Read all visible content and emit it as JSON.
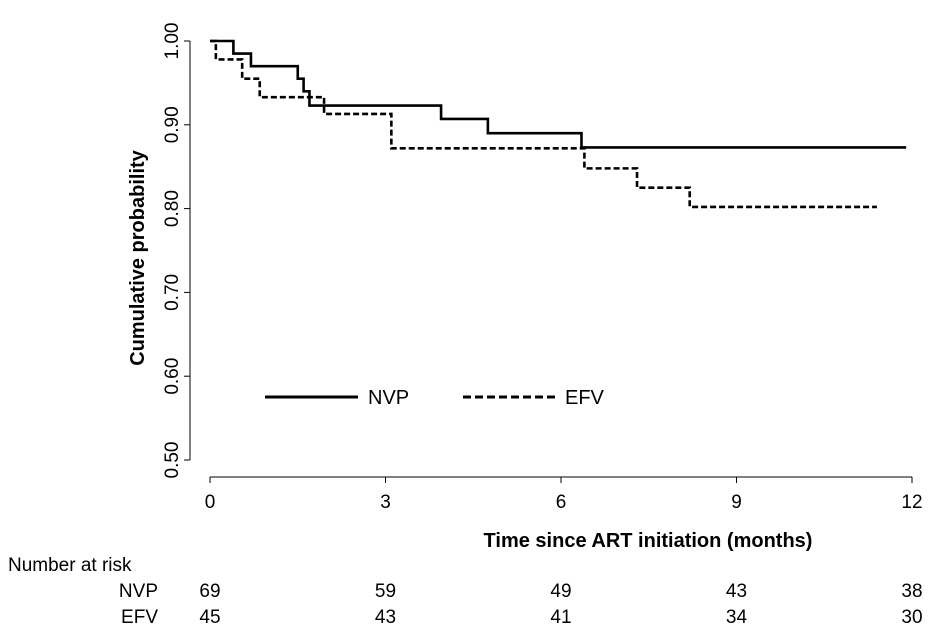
{
  "chart_data": {
    "type": "line",
    "subtype": "kaplan-meier",
    "xlabel": "Time since ART initiation (months)",
    "ylabel": "Cumulative probability",
    "xlim": [
      0,
      12
    ],
    "ylim": [
      0.5,
      1.0
    ],
    "x_ticks": [
      0,
      3,
      6,
      9,
      12
    ],
    "x_tick_labels": [
      "0",
      "3",
      "6",
      "9",
      "12"
    ],
    "y_ticks": [
      0.5,
      0.6,
      0.7,
      0.8,
      0.9,
      1.0
    ],
    "y_tick_labels": [
      "0.50",
      "0.60",
      "0.70",
      "0.80",
      "0.90",
      "1.00"
    ],
    "grid": false,
    "legend_position": "lower-left inside plot",
    "series": [
      {
        "name": "NVP",
        "line_style": "solid",
        "color": "#000000",
        "steps": [
          [
            0,
            1.0
          ],
          [
            0.4,
            0.985
          ],
          [
            0.7,
            0.97
          ],
          [
            1.5,
            0.955
          ],
          [
            1.6,
            0.94
          ],
          [
            1.7,
            0.923
          ],
          [
            3.95,
            0.907
          ],
          [
            4.75,
            0.89
          ],
          [
            6.35,
            0.873
          ],
          [
            11.9,
            0.873
          ]
        ]
      },
      {
        "name": "EFV",
        "line_style": "dashed",
        "color": "#000000",
        "steps": [
          [
            0,
            1.0
          ],
          [
            0.1,
            0.978
          ],
          [
            0.55,
            0.955
          ],
          [
            0.85,
            0.933
          ],
          [
            1.95,
            0.913
          ],
          [
            3.1,
            0.872
          ],
          [
            6.4,
            0.848
          ],
          [
            7.3,
            0.825
          ],
          [
            8.2,
            0.802
          ],
          [
            11.4,
            0.802
          ]
        ]
      }
    ]
  },
  "risk_table": {
    "title": "Number at risk",
    "times": [
      0,
      3,
      6,
      9,
      12
    ],
    "rows": [
      {
        "label": "NVP",
        "values": [
          "69",
          "59",
          "49",
          "43",
          "38"
        ]
      },
      {
        "label": "EFV",
        "values": [
          "45",
          "43",
          "41",
          "34",
          "30"
        ]
      }
    ]
  }
}
